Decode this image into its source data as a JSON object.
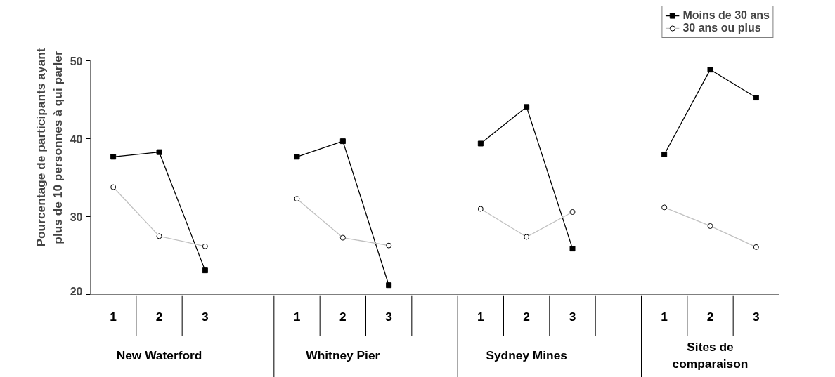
{
  "chart_data": {
    "type": "line",
    "ylabel": "Pourcentage de participants ayant\nplus de 10 personnes à qui parler",
    "categories": [
      "1",
      "2",
      "3",
      null,
      "1",
      "2",
      "3",
      null,
      "1",
      "2",
      "3",
      null,
      "1",
      "2",
      "3"
    ],
    "series": [
      {
        "name": "Moins de 30 ans",
        "color": "#000000",
        "marker": "square",
        "values": [
          37.7,
          38.3,
          23.1,
          null,
          37.7,
          39.7,
          21.2,
          null,
          39.4,
          44.1,
          25.9,
          null,
          38.0,
          48.9,
          45.3
        ]
      },
      {
        "name": "30 ans ou plus",
        "color": "#c0c0c0",
        "marker": "circle",
        "values": [
          33.8,
          27.5,
          26.2,
          null,
          32.3,
          27.3,
          26.3,
          null,
          31.0,
          27.4,
          30.6,
          null,
          31.2,
          28.8,
          26.1
        ]
      }
    ],
    "annotations": [
      "New Waterford",
      "Whitney Pier",
      "Sydney Mines",
      "Sites de comparaison"
    ],
    "ylim": [
      20,
      50
    ],
    "yticks": [
      20,
      30,
      40,
      50
    ],
    "grid": false,
    "legend": "top right"
  }
}
